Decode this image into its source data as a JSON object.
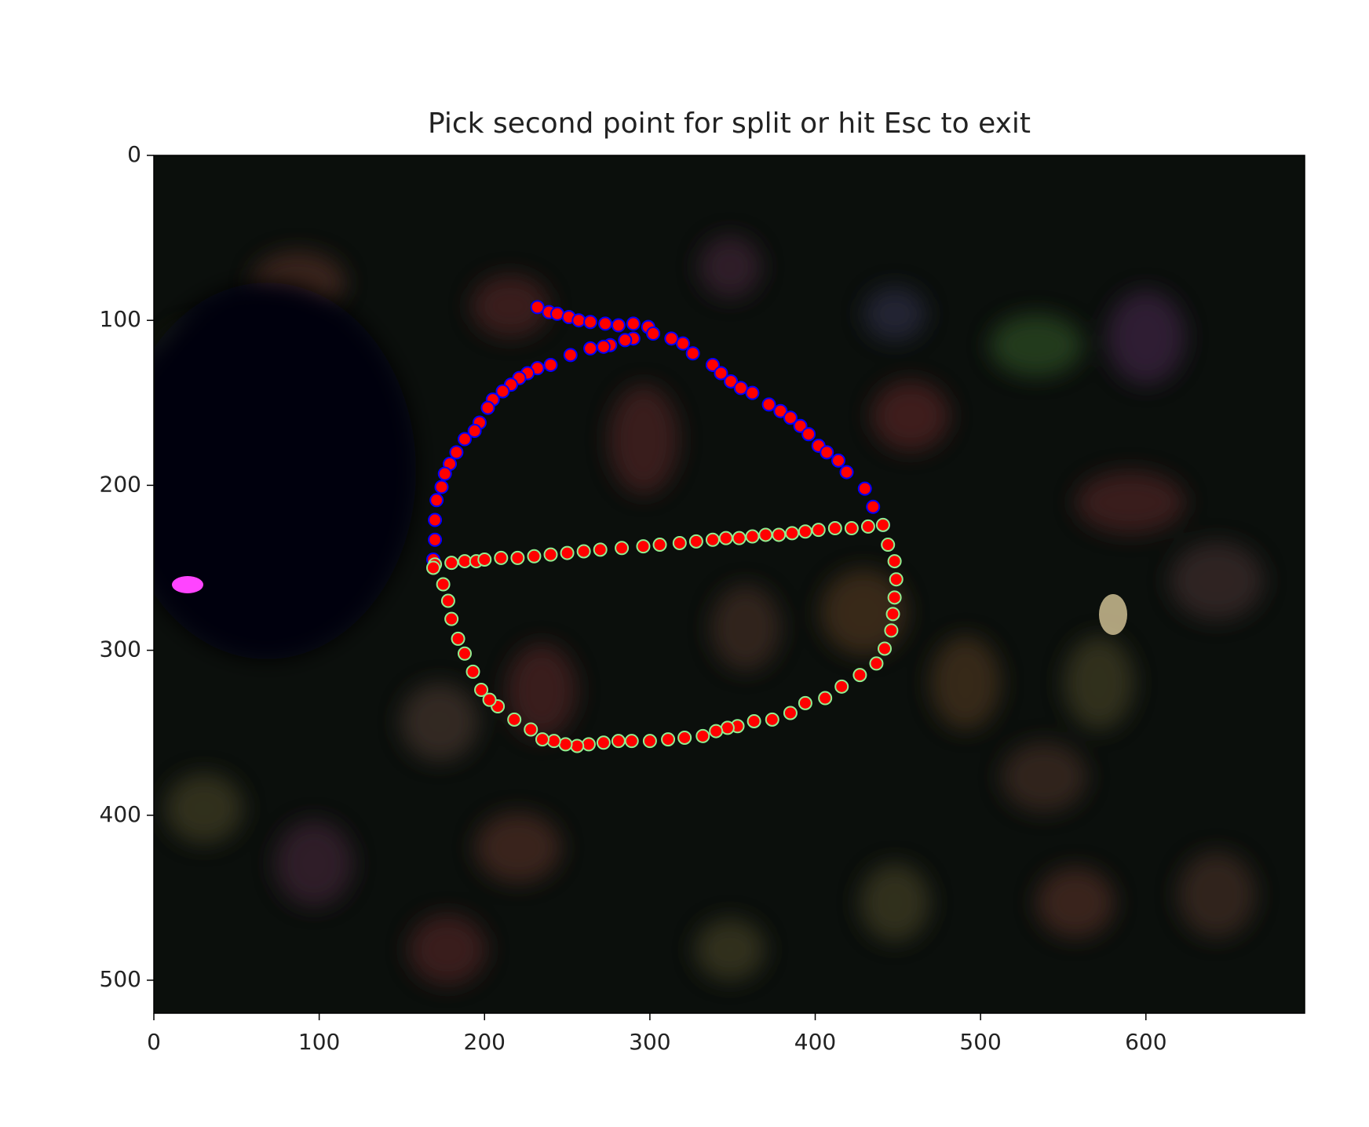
{
  "chart_data": {
    "type": "scatter",
    "title": "Pick second point for split or hit Esc to exit",
    "xlim": [
      0,
      696
    ],
    "ylim": [
      520,
      0
    ],
    "xticks": [
      0,
      100,
      200,
      300,
      400,
      500,
      600
    ],
    "yticks": [
      0,
      100,
      200,
      300,
      400,
      500
    ],
    "series": [
      {
        "color": "#ff0000",
        "edgecolor": "#0000ff",
        "x": [
          232,
          239,
          244,
          251,
          257,
          264,
          273,
          281,
          290,
          299,
          302,
          290,
          285,
          276,
          272,
          264,
          252,
          240,
          232,
          226,
          221,
          216,
          211,
          205,
          202,
          197,
          194,
          188,
          183,
          179,
          176,
          174,
          171,
          170,
          170,
          169,
          313,
          320,
          326,
          338,
          343,
          349,
          355,
          362,
          372,
          379,
          385,
          391,
          396,
          402,
          407,
          414,
          419,
          430,
          435,
          441
        ],
        "y": [
          92,
          95,
          96,
          98,
          100,
          101,
          102,
          103,
          102,
          104,
          108,
          111,
          112,
          115,
          116,
          117,
          121,
          127,
          129,
          132,
          135,
          139,
          143,
          148,
          153,
          162,
          167,
          172,
          180,
          187,
          193,
          201,
          209,
          221,
          233,
          245,
          111,
          114,
          120,
          127,
          132,
          137,
          141,
          144,
          151,
          155,
          159,
          164,
          169,
          176,
          180,
          185,
          192,
          202,
          213,
          224
        ]
      },
      {
        "color": "#ff0000",
        "edgecolor": "#90ee90",
        "x": [
          170,
          180,
          188,
          195,
          200,
          210,
          220,
          230,
          240,
          250,
          260,
          270,
          283,
          296,
          306,
          318,
          328,
          338,
          346,
          354,
          362,
          370,
          378,
          386,
          394,
          402,
          412,
          422,
          432,
          441,
          444,
          448,
          449,
          448,
          447,
          446,
          442,
          437,
          427,
          416,
          406,
          394,
          385,
          374,
          363,
          353,
          347,
          340,
          332,
          321,
          311,
          300,
          289,
          281,
          272,
          263,
          256,
          249,
          242,
          235,
          228,
          218,
          208,
          203,
          198,
          193,
          188,
          184,
          180,
          178,
          175,
          169
        ],
        "y": [
          248,
          247,
          246,
          246,
          245,
          244,
          244,
          243,
          242,
          241,
          240,
          239,
          238,
          237,
          236,
          235,
          234,
          233,
          232,
          232,
          231,
          230,
          230,
          229,
          228,
          227,
          226,
          226,
          225,
          224,
          236,
          246,
          257,
          268,
          278,
          288,
          299,
          308,
          315,
          322,
          329,
          332,
          338,
          342,
          343,
          346,
          347,
          349,
          352,
          353,
          354,
          355,
          355,
          355,
          356,
          357,
          358,
          357,
          355,
          354,
          348,
          342,
          334,
          330,
          324,
          313,
          302,
          293,
          281,
          270,
          260,
          250
        ]
      }
    ]
  }
}
